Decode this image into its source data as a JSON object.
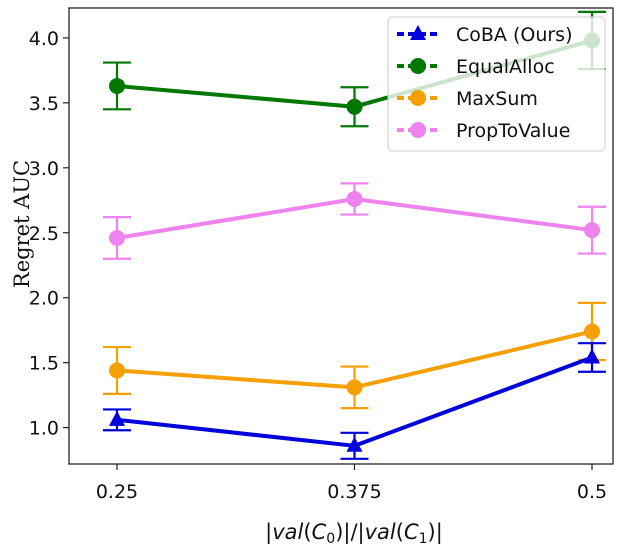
{
  "chart_data": {
    "type": "line",
    "title": "",
    "xlabel": "|val(C0)|/|val(C1)|",
    "xlabel_parts": {
      "bar1": "|",
      "val1": "val",
      "open1": "(",
      "c1": "C",
      "sub1": "0",
      "close1": ")|/|",
      "val2": "val",
      "open2": "(",
      "c2": "C",
      "sub2": "1",
      "close2": ")|"
    },
    "ylabel": "Regret AUC",
    "x": [
      0.25,
      0.375,
      0.5
    ],
    "x_tick_labels": [
      "0.25",
      "0.375",
      "0.5"
    ],
    "ylim": [
      0.72,
      4.23
    ],
    "y_ticks": [
      1.0,
      1.5,
      2.0,
      2.5,
      3.0,
      3.5,
      4.0
    ],
    "y_tick_labels": [
      "1.0",
      "1.5",
      "2.0",
      "2.5",
      "3.0",
      "3.5",
      "4.0"
    ],
    "legend_position": "top-right",
    "series": [
      {
        "name": "CoBA (Ours)",
        "color": "#0000dd",
        "marker": "triangle",
        "values": [
          1.06,
          0.86,
          1.54
        ],
        "err": [
          0.08,
          0.1,
          0.11
        ]
      },
      {
        "name": "EqualAlloc",
        "color": "#007700",
        "marker": "circle",
        "values": [
          3.63,
          3.47,
          3.98
        ],
        "err": [
          0.18,
          0.15,
          0.22
        ]
      },
      {
        "name": "MaxSum",
        "color": "#f5a000",
        "marker": "circle",
        "values": [
          1.44,
          1.31,
          1.74
        ],
        "err": [
          0.18,
          0.16,
          0.22
        ]
      },
      {
        "name": "PropToValue",
        "color": "#ee82ee",
        "marker": "circle",
        "values": [
          2.46,
          2.76,
          2.52
        ],
        "err": [
          0.16,
          0.12,
          0.18
        ]
      }
    ]
  }
}
